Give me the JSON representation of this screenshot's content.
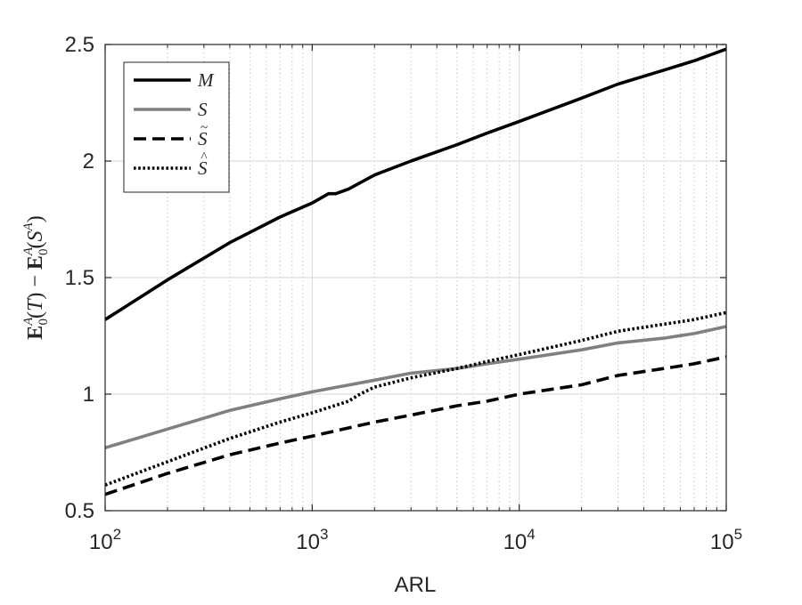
{
  "chart_data": {
    "type": "line",
    "xlabel": "ARL",
    "ylabel": "E0A(T) − E0A(SA)",
    "xscale": "log",
    "xlim": [
      100,
      100000
    ],
    "ylim": [
      0.5,
      2.5
    ],
    "grid": true,
    "minor_grid_x": true,
    "legend_position": "top-left",
    "xticks": [
      {
        "base": "10",
        "exp": "2",
        "value": 100
      },
      {
        "base": "10",
        "exp": "3",
        "value": 1000
      },
      {
        "base": "10",
        "exp": "4",
        "value": 10000
      },
      {
        "base": "10",
        "exp": "5",
        "value": 100000
      }
    ],
    "yticks": [
      {
        "label": "0.5",
        "value": 0.5
      },
      {
        "label": "1",
        "value": 1
      },
      {
        "label": "1.5",
        "value": 1.5
      },
      {
        "label": "2",
        "value": 2
      },
      {
        "label": "2.5",
        "value": 2.5
      }
    ],
    "series": [
      {
        "name": "M",
        "accent": "",
        "color": "#000000",
        "style": "solid",
        "x": [
          100,
          200,
          400,
          700,
          1000,
          1200,
          1300,
          1500,
          2000,
          3000,
          5000,
          7000,
          10000,
          20000,
          30000,
          50000,
          70000,
          100000
        ],
        "y": [
          1.32,
          1.49,
          1.65,
          1.76,
          1.82,
          1.86,
          1.86,
          1.88,
          1.94,
          2.0,
          2.07,
          2.12,
          2.17,
          2.27,
          2.33,
          2.39,
          2.43,
          2.48
        ]
      },
      {
        "name": "S",
        "accent": "",
        "color": "#808080",
        "style": "solid",
        "x": [
          100,
          200,
          400,
          700,
          1000,
          2000,
          3000,
          5000,
          7000,
          10000,
          20000,
          30000,
          50000,
          70000,
          100000
        ],
        "y": [
          0.77,
          0.85,
          0.93,
          0.98,
          1.01,
          1.06,
          1.09,
          1.11,
          1.13,
          1.15,
          1.19,
          1.22,
          1.24,
          1.26,
          1.29
        ]
      },
      {
        "name": "S",
        "accent": "~",
        "color": "#000000",
        "style": "dashed",
        "x": [
          100,
          200,
          400,
          700,
          1000,
          2000,
          3000,
          5000,
          7000,
          10000,
          20000,
          30000,
          50000,
          70000,
          100000
        ],
        "y": [
          0.57,
          0.66,
          0.74,
          0.79,
          0.82,
          0.88,
          0.91,
          0.95,
          0.97,
          1.0,
          1.04,
          1.08,
          1.11,
          1.13,
          1.16
        ]
      },
      {
        "name": "S",
        "accent": "^",
        "color": "#000000",
        "style": "dotted",
        "x": [
          100,
          200,
          400,
          700,
          1000,
          1500,
          1700,
          2000,
          3000,
          5000,
          7000,
          10000,
          20000,
          30000,
          50000,
          70000,
          100000
        ],
        "y": [
          0.61,
          0.71,
          0.81,
          0.88,
          0.92,
          0.97,
          1.0,
          1.03,
          1.07,
          1.11,
          1.14,
          1.17,
          1.23,
          1.27,
          1.3,
          1.32,
          1.35
        ]
      }
    ]
  }
}
